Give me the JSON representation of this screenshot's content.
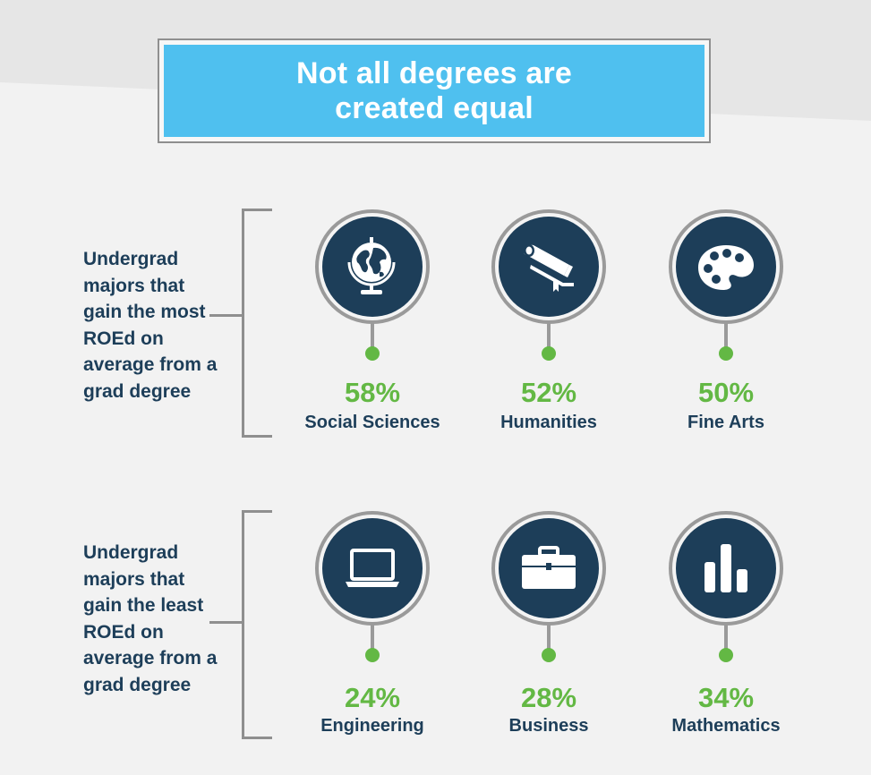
{
  "title": "Not all degrees are created equal",
  "groups": [
    {
      "label": "Undergrad majors that gain the most ROEd on average from a grad degree",
      "items": [
        {
          "percent": "58%",
          "major": "Social Sciences",
          "icon": "globe-icon"
        },
        {
          "percent": "52%",
          "major": "Humanities",
          "icon": "book-scroll-icon"
        },
        {
          "percent": "50%",
          "major": "Fine Arts",
          "icon": "palette-icon"
        }
      ]
    },
    {
      "label": "Undergrad majors that gain the least ROEd on average from a grad degree",
      "items": [
        {
          "percent": "24%",
          "major": "Engineering",
          "icon": "laptop-icon"
        },
        {
          "percent": "28%",
          "major": "Business",
          "icon": "briefcase-icon"
        },
        {
          "percent": "34%",
          "major": "Mathematics",
          "icon": "bar-chart-icon"
        }
      ]
    }
  ],
  "colors": {
    "title_bg": "#4fc0ef",
    "navy": "#1d3e59",
    "green": "#63b844",
    "gray": "#9a9a9a",
    "background": "#f2f2f2"
  }
}
